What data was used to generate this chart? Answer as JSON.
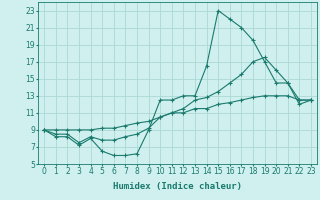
{
  "title": "",
  "xlabel": "Humidex (Indice chaleur)",
  "background_color": "#cff0ee",
  "grid_color": "#aad8d2",
  "line_color": "#1a7a6e",
  "ylim": [
    5,
    24
  ],
  "xlim": [
    -0.5,
    23.5
  ],
  "yticks": [
    5,
    7,
    9,
    11,
    13,
    15,
    17,
    19,
    21,
    23
  ],
  "xticks": [
    0,
    1,
    2,
    3,
    4,
    5,
    6,
    7,
    8,
    9,
    10,
    11,
    12,
    13,
    14,
    15,
    16,
    17,
    18,
    19,
    20,
    21,
    22,
    23
  ],
  "series1_x": [
    0,
    1,
    2,
    3,
    4,
    5,
    6,
    7,
    8,
    9,
    10,
    11,
    12,
    13,
    14,
    15,
    16,
    17,
    18,
    19,
    20,
    21,
    22,
    23
  ],
  "series1_y": [
    9.0,
    8.2,
    8.2,
    7.2,
    8.0,
    6.5,
    6.0,
    6.0,
    6.2,
    9.0,
    12.5,
    12.5,
    13.0,
    13.0,
    16.5,
    23.0,
    22.0,
    21.0,
    19.5,
    17.0,
    14.5,
    14.5,
    12.0,
    12.5
  ],
  "series2_x": [
    0,
    1,
    2,
    3,
    4,
    5,
    6,
    7,
    8,
    9,
    10,
    11,
    12,
    13,
    14,
    15,
    16,
    17,
    18,
    19,
    20,
    21,
    22,
    23
  ],
  "series2_y": [
    9.0,
    8.5,
    8.5,
    7.5,
    8.2,
    7.8,
    7.8,
    8.2,
    8.5,
    9.2,
    10.5,
    11.0,
    11.5,
    12.5,
    12.8,
    13.5,
    14.5,
    15.5,
    17.0,
    17.5,
    16.0,
    14.5,
    12.5,
    12.5
  ],
  "series3_x": [
    0,
    1,
    2,
    3,
    4,
    5,
    6,
    7,
    8,
    9,
    10,
    11,
    12,
    13,
    14,
    15,
    16,
    17,
    18,
    19,
    20,
    21,
    22,
    23
  ],
  "series3_y": [
    9.0,
    9.0,
    9.0,
    9.0,
    9.0,
    9.2,
    9.2,
    9.5,
    9.8,
    10.0,
    10.5,
    11.0,
    11.0,
    11.5,
    11.5,
    12.0,
    12.2,
    12.5,
    12.8,
    13.0,
    13.0,
    13.0,
    12.5,
    12.5
  ]
}
